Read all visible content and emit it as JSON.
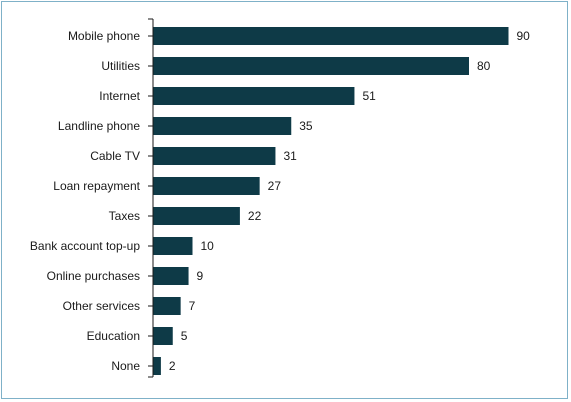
{
  "chart_data": {
    "type": "bar",
    "orientation": "horizontal",
    "categories": [
      "Mobile phone",
      "Utilities",
      "Internet",
      "Landline phone",
      "Cable TV",
      "Loan repayment",
      "Taxes",
      "Bank account top-up",
      "Online purchases",
      "Other services",
      "Education",
      "None"
    ],
    "values": [
      90,
      80,
      51,
      35,
      31,
      27,
      22,
      10,
      9,
      7,
      5,
      2
    ],
    "title": "",
    "xlabel": "",
    "ylabel": "",
    "xlim": [
      0,
      100
    ],
    "grid": false,
    "data_labels": true,
    "colors": {
      "bar": "#0e3a47",
      "axis": "#1a1a1a",
      "frame_border": "#7fb1c8"
    }
  }
}
